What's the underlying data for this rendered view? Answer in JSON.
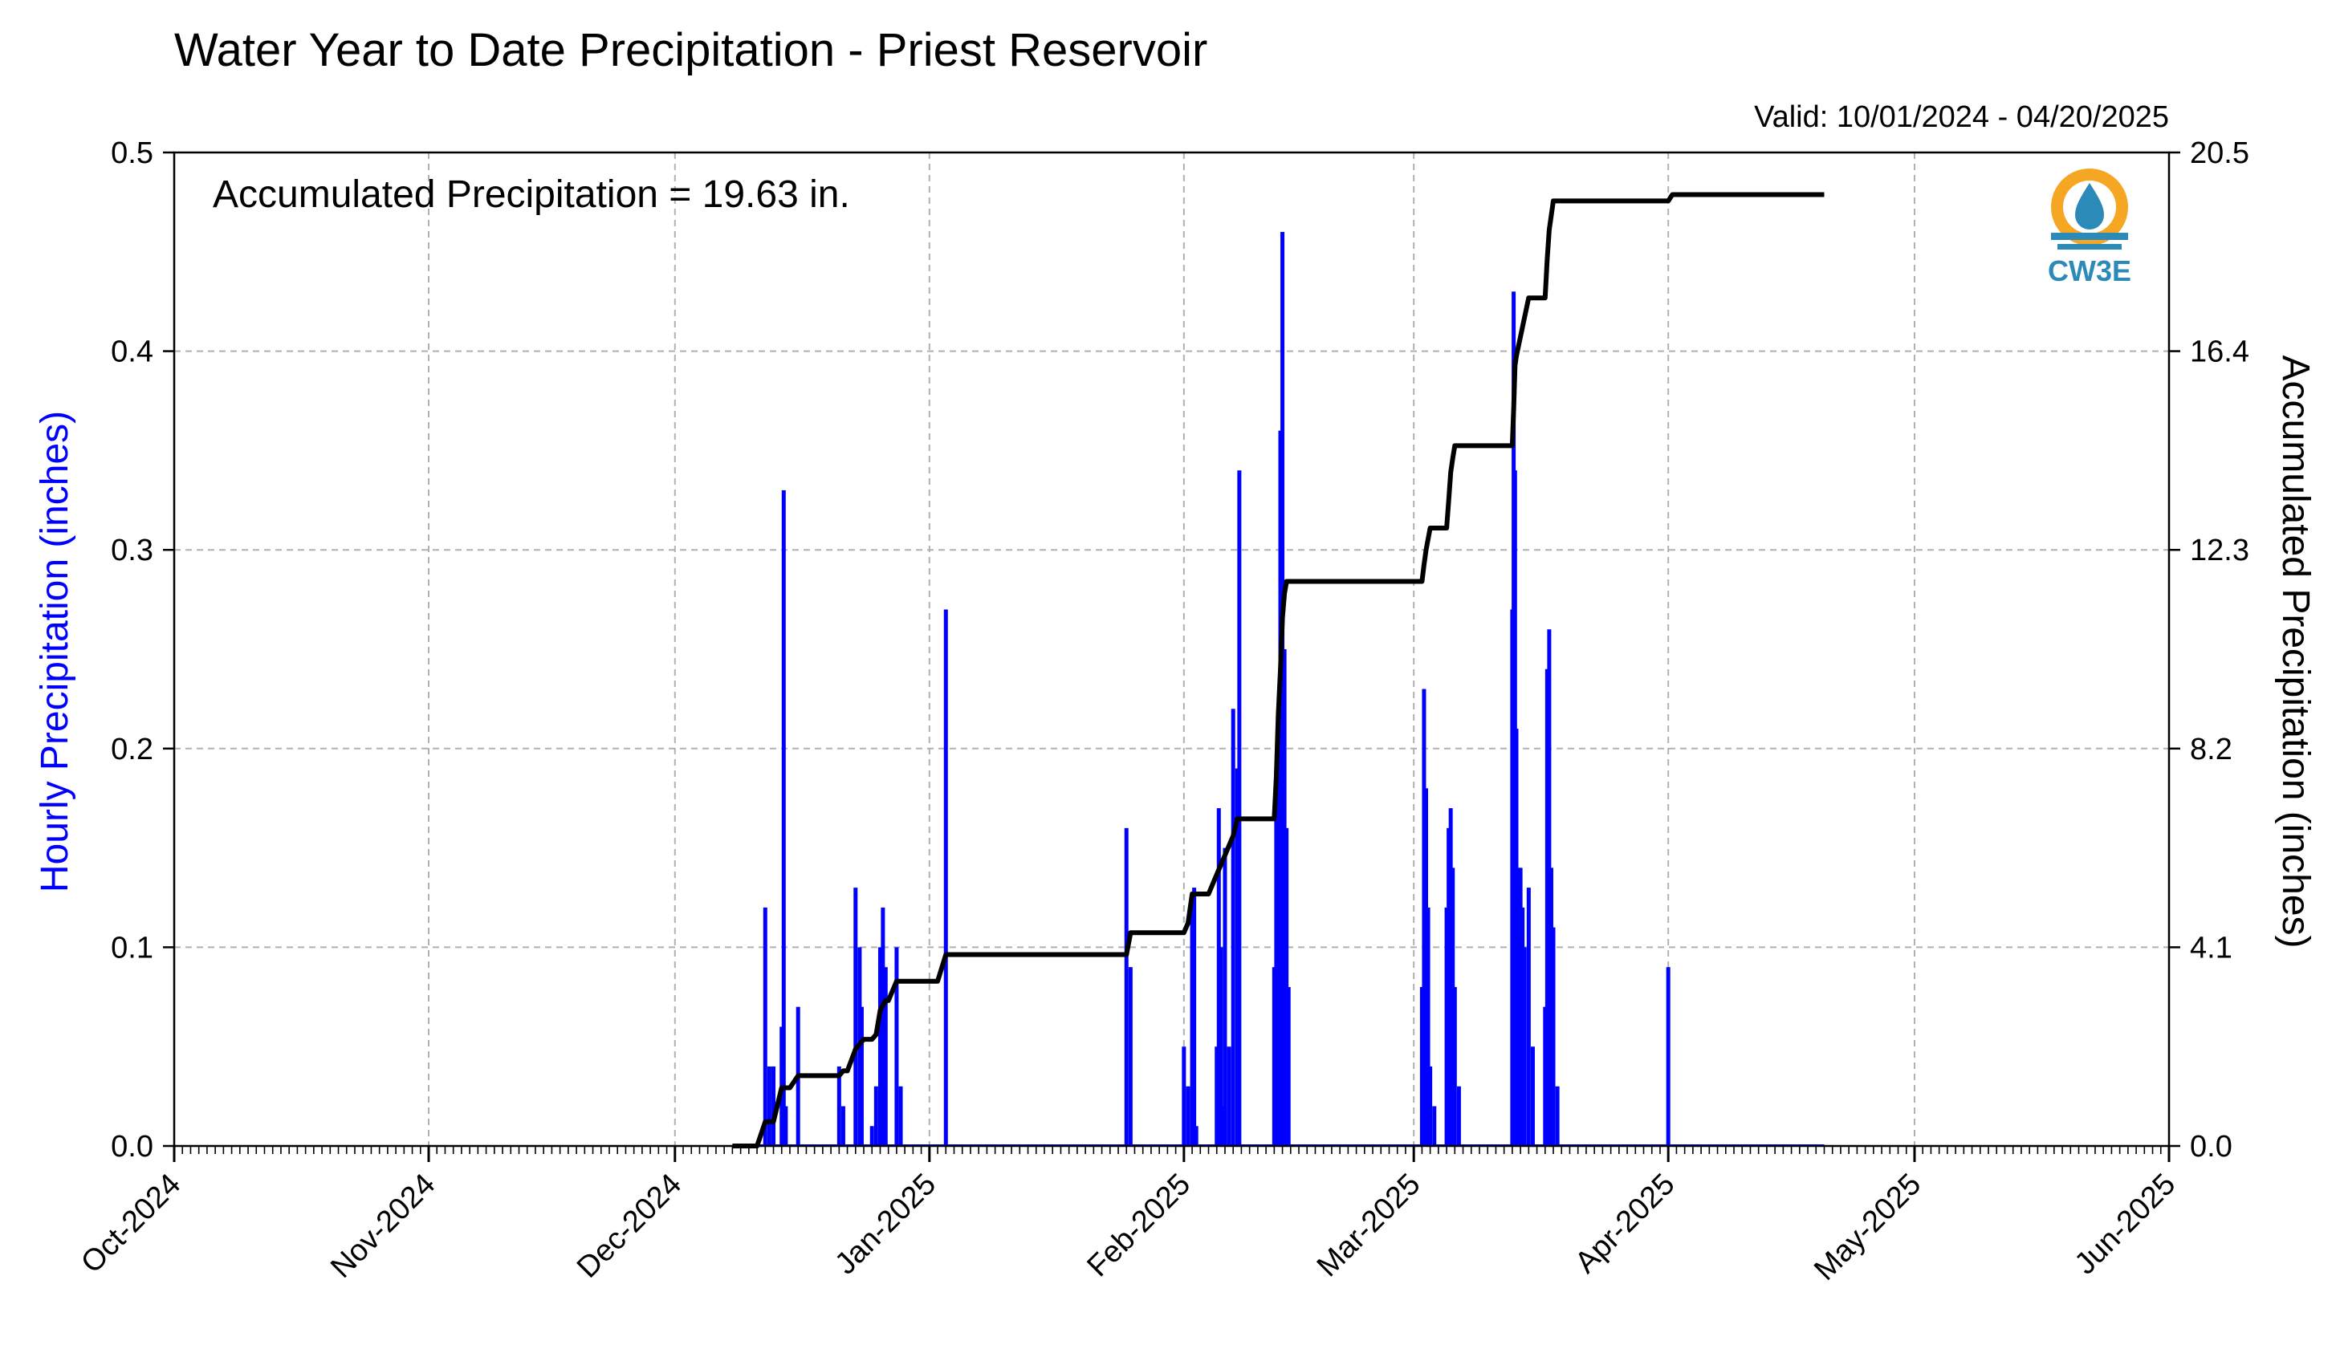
{
  "chart_data": {
    "type": "bar",
    "title": "Water Year to Date Precipitation - Priest Reservoir",
    "valid_text": "Valid: 10/01/2024 - 04/20/2025",
    "annotation": "Accumulated Precipitation = 19.63 in.",
    "logo_text": "CW3E",
    "ylabel_left": "Hourly Precipitation (inches)",
    "ylabel_right": "Accumulated Precipitation (inches)",
    "x_tick_labels": [
      "Oct-2024",
      "Nov-2024",
      "Dec-2024",
      "Jan-2025",
      "Feb-2025",
      "Mar-2025",
      "Apr-2025",
      "May-2025",
      "Jun-2025"
    ],
    "x_tick_dates": [
      "2024-10-01",
      "2024-11-01",
      "2024-12-01",
      "2025-01-01",
      "2025-02-01",
      "2025-03-01",
      "2025-04-01",
      "2025-05-01",
      "2025-06-01"
    ],
    "xlim": [
      "2024-10-01",
      "2025-06-01"
    ],
    "ylim_left": [
      0,
      0.5
    ],
    "yticks_left": [
      "0.0",
      "0.1",
      "0.2",
      "0.3",
      "0.4",
      "0.5"
    ],
    "ylim_right": [
      0,
      20.5
    ],
    "yticks_right": [
      "0.0",
      "4.1",
      "8.2",
      "12.3",
      "16.4",
      "20.5"
    ],
    "grid": true,
    "colors": {
      "hourly": "#0000ff",
      "accumulated": "#000000",
      "grid": "#b0b0b0",
      "logo_orange": "#f5a623",
      "logo_blue": "#2b8ab8"
    },
    "series": [
      {
        "name": "Hourly Precipitation",
        "type": "bar",
        "points": [
          [
            "2024-12-12",
            0.12
          ],
          [
            "2024-12-12T12",
            0.04
          ],
          [
            "2024-12-13",
            0.04
          ],
          [
            "2024-12-14",
            0.06
          ],
          [
            "2024-12-14T06",
            0.33
          ],
          [
            "2024-12-14T12",
            0.02
          ],
          [
            "2024-12-16",
            0.07
          ],
          [
            "2024-12-21",
            0.04
          ],
          [
            "2024-12-21T12",
            0.02
          ],
          [
            "2024-12-23",
            0.13
          ],
          [
            "2024-12-23T12",
            0.1
          ],
          [
            "2024-12-23T18",
            0.07
          ],
          [
            "2024-12-25",
            0.01
          ],
          [
            "2024-12-25T12",
            0.03
          ],
          [
            "2024-12-26",
            0.1
          ],
          [
            "2024-12-26T08",
            0.12
          ],
          [
            "2024-12-26T16",
            0.09
          ],
          [
            "2024-12-28",
            0.1
          ],
          [
            "2024-12-28T12",
            0.03
          ],
          [
            "2025-01-03",
            0.27
          ],
          [
            "2025-01-25",
            0.16
          ],
          [
            "2025-01-25T12",
            0.09
          ],
          [
            "2025-02-01",
            0.05
          ],
          [
            "2025-02-01T12",
            0.03
          ],
          [
            "2025-02-02",
            0.12
          ],
          [
            "2025-02-02T06",
            0.13
          ],
          [
            "2025-02-02T12",
            0.01
          ],
          [
            "2025-02-05",
            0.05
          ],
          [
            "2025-02-05T06",
            0.17
          ],
          [
            "2025-02-05T12",
            0.1
          ],
          [
            "2025-02-05T18",
            0.02
          ],
          [
            "2025-02-06",
            0.15
          ],
          [
            "2025-02-06T12",
            0.05
          ],
          [
            "2025-02-07",
            0.22
          ],
          [
            "2025-02-07T12",
            0.19
          ],
          [
            "2025-02-07T18",
            0.34
          ],
          [
            "2025-02-12",
            0.09
          ],
          [
            "2025-02-12T06",
            0.18
          ],
          [
            "2025-02-12T12",
            0.22
          ],
          [
            "2025-02-12T18",
            0.36
          ],
          [
            "2025-02-13",
            0.46
          ],
          [
            "2025-02-13T06",
            0.25
          ],
          [
            "2025-02-13T12",
            0.16
          ],
          [
            "2025-02-13T18",
            0.08
          ],
          [
            "2025-03-02",
            0.08
          ],
          [
            "2025-03-02T06",
            0.23
          ],
          [
            "2025-03-02T12",
            0.18
          ],
          [
            "2025-03-02T18",
            0.12
          ],
          [
            "2025-03-03",
            0.04
          ],
          [
            "2025-03-03T12",
            0.02
          ],
          [
            "2025-03-05",
            0.12
          ],
          [
            "2025-03-05T06",
            0.16
          ],
          [
            "2025-03-05T12",
            0.17
          ],
          [
            "2025-03-05T18",
            0.14
          ],
          [
            "2025-03-06",
            0.08
          ],
          [
            "2025-03-06T12",
            0.03
          ],
          [
            "2025-03-13",
            0.27
          ],
          [
            "2025-03-13T04",
            0.43
          ],
          [
            "2025-03-13T08",
            0.34
          ],
          [
            "2025-03-13T12",
            0.21
          ],
          [
            "2025-03-13T18",
            0.14
          ],
          [
            "2025-03-14",
            0.14
          ],
          [
            "2025-03-14T06",
            0.12
          ],
          [
            "2025-03-14T12",
            0.1
          ],
          [
            "2025-03-15",
            0.13
          ],
          [
            "2025-03-15T12",
            0.05
          ],
          [
            "2025-03-17",
            0.07
          ],
          [
            "2025-03-17T06",
            0.24
          ],
          [
            "2025-03-17T12",
            0.26
          ],
          [
            "2025-03-17T18",
            0.14
          ],
          [
            "2025-03-18",
            0.11
          ],
          [
            "2025-03-18T12",
            0.03
          ],
          [
            "2025-04-01",
            0.09
          ]
        ]
      },
      {
        "name": "Accumulated Precipitation",
        "type": "line",
        "points": [
          [
            "2024-12-08",
            0.0
          ],
          [
            "2024-12-11",
            0.0
          ],
          [
            "2024-12-12",
            0.5
          ],
          [
            "2024-12-13",
            0.5
          ],
          [
            "2024-12-14",
            1.2
          ],
          [
            "2024-12-15",
            1.2
          ],
          [
            "2024-12-16",
            1.45
          ],
          [
            "2024-12-21",
            1.45
          ],
          [
            "2024-12-21T12",
            1.55
          ],
          [
            "2024-12-22",
            1.55
          ],
          [
            "2024-12-23",
            2.0
          ],
          [
            "2024-12-24",
            2.2
          ],
          [
            "2024-12-25",
            2.2
          ],
          [
            "2024-12-25T12",
            2.3
          ],
          [
            "2024-12-26",
            2.8
          ],
          [
            "2024-12-26T16",
            3.0
          ],
          [
            "2024-12-27",
            3.0
          ],
          [
            "2024-12-28",
            3.4
          ],
          [
            "2025-01-02",
            3.4
          ],
          [
            "2025-01-03",
            3.95
          ],
          [
            "2025-01-25",
            3.95
          ],
          [
            "2025-01-25T12",
            4.4
          ],
          [
            "2025-02-01",
            4.4
          ],
          [
            "2025-02-01T12",
            4.6
          ],
          [
            "2025-02-02",
            5.2
          ],
          [
            "2025-02-04",
            5.2
          ],
          [
            "2025-02-05",
            5.6
          ],
          [
            "2025-02-05T18",
            5.9
          ],
          [
            "2025-02-06",
            6.0
          ],
          [
            "2025-02-06T12",
            6.2
          ],
          [
            "2025-02-07",
            6.4
          ],
          [
            "2025-02-07T12",
            6.75
          ],
          [
            "2025-02-12",
            6.75
          ],
          [
            "2025-02-12T06",
            7.6
          ],
          [
            "2025-02-12T12",
            8.9
          ],
          [
            "2025-02-12T18",
            9.8
          ],
          [
            "2025-02-13",
            10.9
          ],
          [
            "2025-02-13T06",
            11.4
          ],
          [
            "2025-02-13T12",
            11.65
          ],
          [
            "2025-03-02",
            11.65
          ],
          [
            "2025-03-02T06",
            12.0
          ],
          [
            "2025-03-02T12",
            12.3
          ],
          [
            "2025-03-03",
            12.75
          ],
          [
            "2025-03-05",
            12.75
          ],
          [
            "2025-03-05T06",
            13.3
          ],
          [
            "2025-03-05T12",
            13.9
          ],
          [
            "2025-03-05T18",
            14.2
          ],
          [
            "2025-03-06",
            14.45
          ],
          [
            "2025-03-13",
            14.45
          ],
          [
            "2025-03-13T04",
            15.2
          ],
          [
            "2025-03-13T08",
            16.1
          ],
          [
            "2025-03-13T12",
            16.3
          ],
          [
            "2025-03-14",
            16.7
          ],
          [
            "2025-03-14T12",
            17.1
          ],
          [
            "2025-03-15",
            17.5
          ],
          [
            "2025-03-17",
            17.5
          ],
          [
            "2025-03-17T06",
            18.3
          ],
          [
            "2025-03-17T12",
            18.9
          ],
          [
            "2025-03-18",
            19.5
          ],
          [
            "2025-04-01",
            19.5
          ],
          [
            "2025-04-01T12",
            19.63
          ],
          [
            "2025-04-20",
            19.63
          ]
        ]
      }
    ]
  }
}
